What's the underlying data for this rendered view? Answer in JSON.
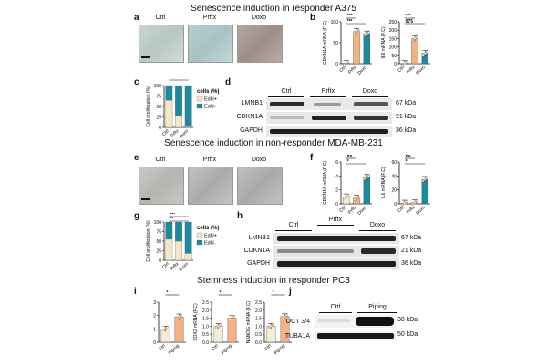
{
  "sections": {
    "s1": "Senescence induction in responder A375",
    "s2": "Senescence induction in non-responder MDA-MB-231",
    "s3": "Stemness induction in responder PC3"
  },
  "panels": {
    "a": "a",
    "b": "b",
    "c": "c",
    "d": "d",
    "e": "e",
    "f": "f",
    "g": "g",
    "h": "h",
    "i": "i",
    "j": "j"
  },
  "colors": {
    "ctrl": "#f6ecd6",
    "prfx": "#f4b183",
    "doxo": "#1a8a9e",
    "edu_pos": "#f6e6c6",
    "edu_neg": "#1a8a9e"
  },
  "micro_a": [
    "Ctrl",
    "Prftx",
    "Doxo"
  ],
  "micro_e": [
    "Ctrl",
    "Prftx",
    "Doxo"
  ],
  "chart_data": [
    {
      "id": "b1",
      "type": "bar",
      "ylabel": "CDKN1A mRNA (F.C)",
      "categories": [
        "Ctrl",
        "Prftx",
        "Doxo"
      ],
      "values": [
        1.2,
        77,
        71
      ],
      "ylim": [
        0,
        100
      ],
      "ticks": [
        "0",
        "50",
        "100"
      ],
      "sig": [
        "***",
        "***"
      ]
    },
    {
      "id": "b2",
      "type": "bar",
      "ylabel": "IL6 mRNA (F.C)",
      "categories": [
        "Ctrl",
        "Prftx",
        "Doxo"
      ],
      "values": [
        0.5,
        150,
        62
      ],
      "ylim": [
        0,
        250
      ],
      "ticks": [
        "0",
        "50",
        "100",
        "150",
        "200",
        "250"
      ],
      "sig": [
        "***",
        "075"
      ]
    },
    {
      "id": "c",
      "type": "bar",
      "ylabel": "Cell proliferation (%)",
      "categories": [
        "Ctrl",
        "Prftx",
        "Doxo"
      ],
      "series": [
        {
          "name": "EdU+",
          "values": [
            65,
            28,
            2
          ]
        },
        {
          "name": "EdU-",
          "values": [
            35,
            72,
            98
          ]
        }
      ],
      "ylim": [
        0,
        100
      ],
      "ticks": [
        "0",
        "25",
        "50",
        "75",
        "100"
      ],
      "legend_title": "cells (%)",
      "sig": [
        "***"
      ]
    },
    {
      "id": "f1",
      "type": "bar",
      "ylabel": "CDKN1A mRNA (F.C)",
      "categories": [
        "Ctrl",
        "Prftx",
        "Doxo"
      ],
      "values": [
        1.0,
        0.8,
        3.8
      ],
      "ylim": [
        0,
        6
      ],
      "ticks": [
        "0",
        "2",
        "4",
        "6"
      ],
      "sig": [
        "ns",
        "*"
      ]
    },
    {
      "id": "f2",
      "type": "bar",
      "ylabel": "IL6 mRNA (F.C)",
      "categories": [
        "Ctrl",
        "Prftx",
        "Doxo"
      ],
      "values": [
        1.0,
        1.5,
        35
      ],
      "ylim": [
        0,
        60
      ],
      "ticks": [
        "0",
        "20",
        "40",
        "60"
      ],
      "sig": [
        "ns",
        "*"
      ]
    },
    {
      "id": "g",
      "type": "bar",
      "ylabel": "Cell proliferation (%)",
      "categories": [
        "Ctrl",
        "Prftx",
        "Doxo"
      ],
      "series": [
        {
          "name": "EdU+",
          "values": [
            55,
            50,
            18
          ]
        },
        {
          "name": "EdU-",
          "values": [
            45,
            50,
            82
          ]
        }
      ],
      "ylim": [
        0,
        100
      ],
      "ticks": [
        "0",
        "25",
        "50",
        "75",
        "100"
      ],
      "legend_title": "cells (%)",
      "sig": [
        "***",
        "**"
      ]
    },
    {
      "id": "i1",
      "type": "bar",
      "ylabel": "",
      "categories": [
        "Ctrl",
        "Piping"
      ],
      "values": [
        1.0,
        1.9
      ],
      "ylim": [
        0,
        3
      ],
      "ticks": [
        "0",
        "1",
        "2",
        "3"
      ],
      "sig": [
        "*"
      ]
    },
    {
      "id": "i2",
      "type": "bar",
      "ylabel": "SOX2 mRNA (F.C)",
      "categories": [
        "Ctrl",
        "Piping"
      ],
      "values": [
        1.0,
        1.5
      ],
      "ylim": [
        0,
        2.5
      ],
      "ticks": [
        "0.0",
        "0.5",
        "1.0",
        "1.5",
        "2.0",
        "2.5"
      ],
      "sig": [
        "*"
      ]
    },
    {
      "id": "i3",
      "type": "bar",
      "ylabel": "NANOG mRNA (F.C)",
      "categories": [
        "Ctrl",
        "Piping"
      ],
      "values": [
        1.0,
        1.6
      ],
      "ylim": [
        0,
        2.5
      ],
      "ticks": [
        "0.0",
        "0.5",
        "1.0",
        "1.5",
        "2.0",
        "2.5"
      ],
      "sig": [
        "*"
      ]
    }
  ],
  "blot_d": {
    "groups": [
      "Ctrl",
      "Prftx",
      "Doxo"
    ],
    "rows": [
      {
        "label": "LMNB1",
        "kda": "67 kDa"
      },
      {
        "label": "CDKN1A",
        "kda": "21 kDa"
      },
      {
        "label": "GAPDH",
        "kda": "36 kDa"
      }
    ]
  },
  "blot_h": {
    "groups": [
      "Ctrl",
      "Prftx",
      "Doxo"
    ],
    "rows": [
      {
        "label": "LMNB1",
        "kda": "67 kDa"
      },
      {
        "label": "CDKN1A",
        "kda": "21 kDa"
      },
      {
        "label": "GAPDH",
        "kda": "36 kDa"
      }
    ]
  },
  "blot_j": {
    "groups": [
      "Ctrl",
      "Piping"
    ],
    "rows": [
      {
        "label": "OCT 3/4",
        "kda": "38 kDa"
      },
      {
        "label": "TUBA1A",
        "kda": "50 kDa"
      }
    ]
  }
}
